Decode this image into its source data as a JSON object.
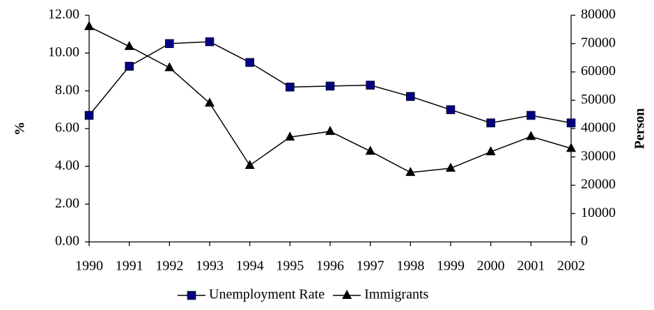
{
  "chart_data": {
    "type": "line",
    "categories": [
      "1990",
      "1991",
      "1992",
      "1993",
      "1994",
      "1995",
      "1996",
      "1997",
      "1998",
      "1999",
      "2000",
      "2001",
      "2002"
    ],
    "y_label": "%",
    "y2_label": "Person",
    "series": [
      {
        "name": "Unemployment Rate",
        "color": "#000080",
        "marker": "square",
        "values": [
          6.7,
          9.3,
          10.5,
          10.6,
          9.5,
          8.2,
          8.25,
          8.3,
          7.7,
          7.0,
          6.3,
          6.7,
          6.3
        ]
      },
      {
        "name": "Immigrants",
        "color": "#000000",
        "marker": "triangle",
        "axis": "y2",
        "values": [
          76000,
          69000,
          61500,
          49000,
          27000,
          37000,
          39000,
          32000,
          24500,
          26000,
          31800,
          37200,
          33000
        ]
      }
    ],
    "ylim": [
      0,
      12
    ],
    "yticks": [
      {
        "value": 0,
        "label": "0.00"
      },
      {
        "value": 2,
        "label": "2.00"
      },
      {
        "value": 4,
        "label": "4.00"
      },
      {
        "value": 6,
        "label": "6.00"
      },
      {
        "value": 8,
        "label": "8.00"
      },
      {
        "value": 10,
        "label": "10.00"
      },
      {
        "value": 12,
        "label": "12.00"
      }
    ],
    "y2lim": [
      0,
      80000
    ],
    "y2ticks": [
      0,
      10000,
      20000,
      30000,
      40000,
      50000,
      60000,
      70000,
      80000
    ],
    "legend": "bottom"
  }
}
